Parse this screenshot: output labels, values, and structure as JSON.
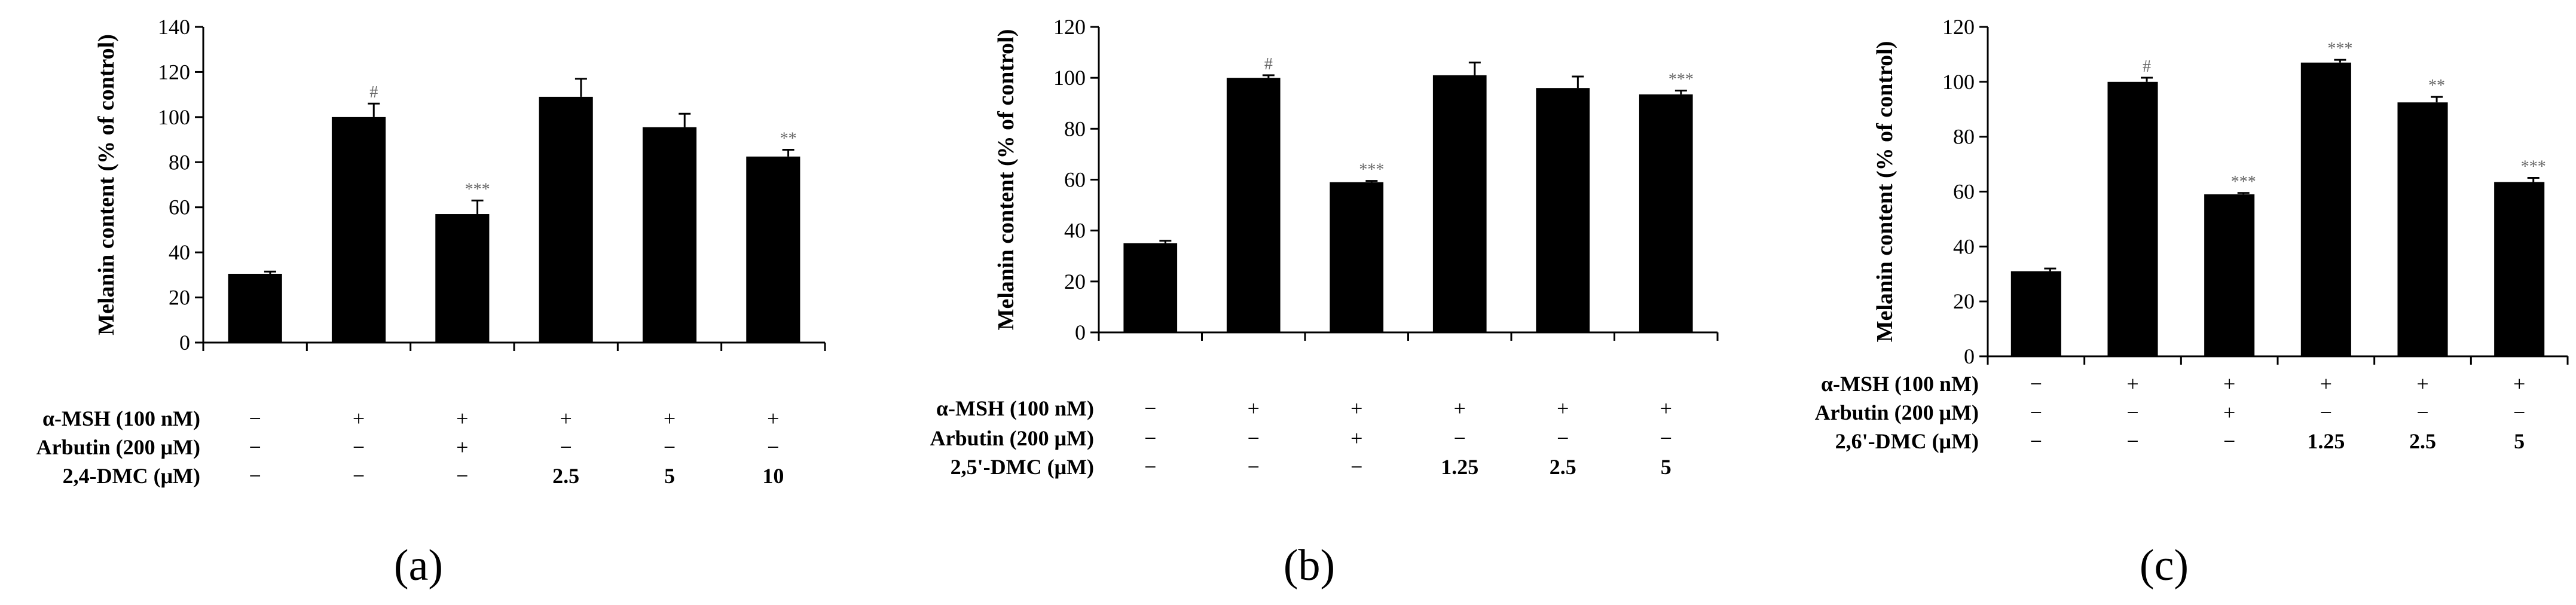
{
  "colors": {
    "bar": "#000000",
    "axis": "#000000",
    "annotation": "#666666"
  },
  "chart_data": [
    {
      "type": "bar",
      "panel_label": "(a)",
      "ylabel": "Melanin content (% of control)",
      "ylim": [
        0,
        140
      ],
      "yticks": [
        0,
        20,
        40,
        60,
        80,
        100,
        120,
        140
      ],
      "values": [
        30.5,
        100,
        57,
        109,
        95.5,
        82.5
      ],
      "errors": [
        1,
        6,
        6,
        8,
        6,
        3
      ],
      "annotations": [
        "",
        "#",
        "***",
        "",
        "",
        "**"
      ],
      "treatment_rows": [
        {
          "label": "α-MSH (100 nM)",
          "cells": [
            "−",
            "+",
            "+",
            "+",
            "+",
            "+"
          ]
        },
        {
          "label": "Arbutin (200 μM)",
          "cells": [
            "−",
            "−",
            "+",
            "−",
            "−",
            "−"
          ]
        },
        {
          "label": "2,4-DMC (μM)",
          "cells": [
            "−",
            "−",
            "−",
            "2.5",
            "5",
            "10"
          ]
        }
      ]
    },
    {
      "type": "bar",
      "panel_label": "(b)",
      "ylabel": "Melanin content (% of control)",
      "ylim": [
        0,
        120
      ],
      "yticks": [
        0,
        20,
        40,
        60,
        80,
        100,
        120
      ],
      "values": [
        35,
        100,
        59,
        101,
        96,
        93.5
      ],
      "errors": [
        1,
        1,
        0.5,
        5,
        4.5,
        1.5
      ],
      "annotations": [
        "",
        "#",
        "***",
        "",
        "",
        "***"
      ],
      "treatment_rows": [
        {
          "label": "α-MSH (100 nM)",
          "cells": [
            "−",
            "+",
            "+",
            "+",
            "+",
            "+"
          ]
        },
        {
          "label": "Arbutin (200 μM)",
          "cells": [
            "−",
            "−",
            "+",
            "−",
            "−",
            "−"
          ]
        },
        {
          "label": "2,5'-DMC (μM)",
          "cells": [
            "−",
            "−",
            "−",
            "1.25",
            "2.5",
            "5"
          ]
        }
      ]
    },
    {
      "type": "bar",
      "panel_label": "(c)",
      "ylabel": "Melanin content (% of control)",
      "ylim": [
        0,
        120
      ],
      "yticks": [
        0,
        20,
        40,
        60,
        80,
        100,
        120
      ],
      "values": [
        31,
        100,
        59,
        107,
        92.5,
        63.5
      ],
      "errors": [
        1,
        1.5,
        0.5,
        1,
        2,
        1.5
      ],
      "annotations": [
        "",
        "#",
        "***",
        "***",
        "**",
        "***"
      ],
      "treatment_rows": [
        {
          "label": "α-MSH (100 nM)",
          "cells": [
            "−",
            "+",
            "+",
            "+",
            "+",
            "+"
          ]
        },
        {
          "label": "Arbutin (200 μM)",
          "cells": [
            "−",
            "−",
            "+",
            "−",
            "−",
            "−"
          ]
        },
        {
          "label": "2,6'-DMC (μM)",
          "cells": [
            "−",
            "−",
            "−",
            "1.25",
            "2.5",
            "5"
          ]
        }
      ]
    }
  ]
}
